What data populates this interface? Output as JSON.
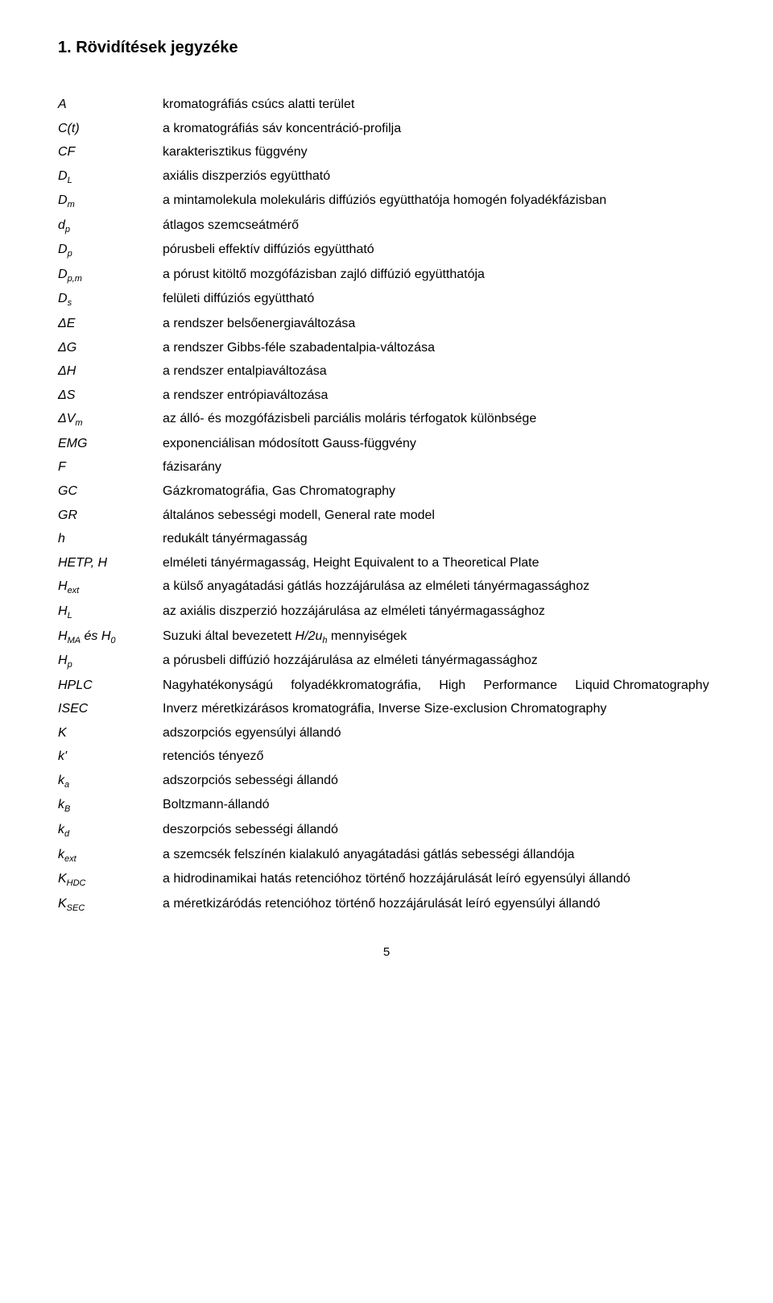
{
  "heading": "1. Rövidítések jegyzéke",
  "entries": [
    {
      "term": "A",
      "desc": "kromatográfiás csúcs alatti terület"
    },
    {
      "term": "C(t)",
      "desc": "a kromatográfiás sáv koncentráció-profilja"
    },
    {
      "term": "CF",
      "desc": "karakterisztikus függvény"
    },
    {
      "term_html": "D<span class='sub'>L</span>",
      "desc": "axiális diszperziós együttható"
    },
    {
      "term_html": "D<span class='sub'>m</span>",
      "desc": "a mintamolekula molekuláris diffúziós együtthatója homogén folyadékfázisban"
    },
    {
      "term_html": "d<span class='sub'>p</span>",
      "desc": "átlagos szemcseátmérő"
    },
    {
      "term_html": "D<span class='sub'>p</span>",
      "desc": "pórusbeli effektív diffúziós együttható"
    },
    {
      "term_html": "D<span class='sub'>p,m</span>",
      "desc": "a pórust kitöltő mozgófázisban zajló diffúzió együtthatója"
    },
    {
      "term_html": "D<span class='sub'>s</span>",
      "desc": "felületi diffúziós együttható"
    },
    {
      "term_html": "&Delta;E",
      "desc": "a rendszer belsőenergiaváltozása"
    },
    {
      "term_html": "&Delta;G",
      "desc": "a rendszer Gibbs-féle szabadentalpia-változása"
    },
    {
      "term_html": "&Delta;H",
      "desc": "a rendszer entalpiaváltozása"
    },
    {
      "term_html": "&Delta;S",
      "desc": "a rendszer entrópiaváltozása"
    },
    {
      "term_html": "&Delta;V<span class='sub'>m</span>",
      "desc": "az álló- és mozgófázisbeli parciális moláris térfogatok különbsége"
    },
    {
      "term": "EMG",
      "desc": "exponenciálisan módosított Gauss-függvény"
    },
    {
      "term": "F",
      "desc": "fázisarány"
    },
    {
      "term": "GC",
      "desc": "Gázkromatográfia, Gas Chromatography"
    },
    {
      "term": "GR",
      "desc": "általános sebességi modell, General rate model"
    },
    {
      "term": "h",
      "desc": "redukált tányérmagasság"
    },
    {
      "term": "HETP, H",
      "desc": "elméleti tányérmagasság, Height Equivalent to a Theoretical Plate"
    },
    {
      "term_html": "H<span class='sub'>ext</span>",
      "desc": "a külső anyagátadási gátlás hozzájárulása az elméleti tányérmagassághoz"
    },
    {
      "term_html": "H<span class='sub'>L</span>",
      "desc": "az axiális diszperzió hozzájárulása az elméleti tányérmagassághoz"
    },
    {
      "term_html": "H<span class='sub'>MA</span> és H<span class='sub'>0</span>",
      "desc_html": "Suzuki által bevezetett <span class='ital'>H/2u<span class='sub'>h</span></span> mennyiségek"
    },
    {
      "term_html": "H<span class='sub'>p</span>",
      "desc": "a pórusbeli diffúzió hozzájárulása az elméleti tányérmagassághoz"
    },
    {
      "term": "HPLC",
      "desc_html": "Nagyhatékonyságú&nbsp;&nbsp;&nbsp;&nbsp;&nbsp;folyadékkromatográfia,&nbsp;&nbsp;&nbsp;&nbsp;&nbsp;High&nbsp;&nbsp;&nbsp;&nbsp;&nbsp;Performance&nbsp;&nbsp;&nbsp;&nbsp;&nbsp;Liquid Chromatography",
      "justify": true
    },
    {
      "term": "ISEC",
      "desc": "Inverz méretkizárásos kromatográfia, Inverse Size-exclusion Chromatography"
    },
    {
      "term": "K",
      "desc": "adszorpciós egyensúlyi állandó"
    },
    {
      "term": "k'",
      "desc": "retenciós tényező"
    },
    {
      "term_html": "k<span class='sub'>a</span>",
      "desc": "adszorpciós sebességi állandó"
    },
    {
      "term_html": "k<span class='sub'>B</span>",
      "desc": "Boltzmann-állandó"
    },
    {
      "term_html": "k<span class='sub'>d</span>",
      "desc": "deszorpciós sebességi állandó"
    },
    {
      "term_html": "k<span class='sub'>ext</span>",
      "desc": "a szemcsék felszínén kialakuló anyagátadási gátlás sebességi állandója"
    },
    {
      "term_html": "K<span class='sub'>HDC</span>",
      "desc": "a hidrodinamikai hatás retencióhoz történő hozzájárulását leíró egyensúlyi állandó"
    },
    {
      "term_html": "K<span class='sub'>SEC</span>",
      "desc": "a méretkizáródás retencióhoz történő hozzájárulását leíró egyensúlyi állandó"
    }
  ],
  "page_number": "5"
}
